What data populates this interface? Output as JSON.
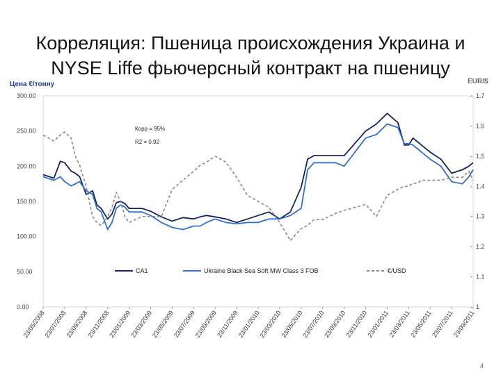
{
  "header": {
    "title_line1": "Корреляция: Пшеница происхождения Украина и",
    "title_line2": "NYSE Liffe фьючерсный контракт на пшеницу"
  },
  "page": {
    "number": "4"
  },
  "chart_data": {
    "type": "line",
    "ylabel": "Цена €/тонну",
    "y2label": "EUR/$",
    "ylim": [
      0,
      300
    ],
    "y2lim": [
      1,
      1.7
    ],
    "yticks": [
      "300.00",
      "250.00",
      "200.00",
      "150.00",
      "100.00",
      "50.00",
      "0.00"
    ],
    "y2ticks": [
      "1.7",
      "1.6",
      "1.5",
      "1.4",
      "1.3",
      "1.2",
      "1.1",
      "1"
    ],
    "xticks": [
      "23/05/2008",
      "23/07/2008",
      "23/09/2008",
      "23/11/2008",
      "23/01/2009",
      "23/03/2009",
      "23/05/2009",
      "23/07/2009",
      "23/09/2009",
      "23/11/2009",
      "23/01/2010",
      "23/03/2010",
      "23/05/2010",
      "23/07/2010",
      "23/09/2010",
      "23/11/2010",
      "23/01/2011",
      "23/03/2011",
      "23/05/2011",
      "23/07/2011",
      "23/09/2011"
    ],
    "annotations": [
      "Корр = 95%",
      "R2 = 0.92"
    ],
    "x": [
      0,
      0.5,
      0.8,
      1,
      1.3,
      1.5,
      1.7,
      2,
      2.3,
      2.5,
      2.7,
      3,
      3.2,
      3.4,
      3.6,
      3.8,
      4,
      4.3,
      4.6,
      5,
      5.5,
      6,
      6.5,
      7,
      7.3,
      7.6,
      8,
      8.5,
      9,
      9.5,
      10,
      10.5,
      11,
      11.5,
      12,
      12.3,
      12.6,
      13,
      13.3,
      13.6,
      14,
      15,
      15.5,
      16,
      16.5,
      16.8,
      17,
      17.2,
      17.4,
      17.6,
      18,
      18.5,
      19,
      19.5,
      19.8,
      20
    ],
    "series": [
      {
        "name": "CA1",
        "color": "#13235f",
        "axis": "left",
        "values": [
          188,
          183,
          207,
          205,
          193,
          190,
          185,
          160,
          165,
          145,
          140,
          125,
          132,
          148,
          150,
          147,
          140,
          140,
          140,
          136,
          128,
          122,
          127,
          125,
          128,
          130,
          128,
          125,
          120,
          125,
          130,
          135,
          125,
          135,
          170,
          210,
          215,
          215,
          215,
          215,
          215,
          250,
          260,
          275,
          262,
          230,
          230,
          240,
          235,
          230,
          220,
          210,
          190,
          195,
          200,
          205
        ]
      },
      {
        "name": "Ukraine Black Sea Soft MW Class 3 FOB",
        "color": "#2e6fd6",
        "axis": "left",
        "values": [
          185,
          180,
          185,
          178,
          172,
          175,
          178,
          165,
          160,
          140,
          135,
          110,
          120,
          140,
          145,
          142,
          135,
          135,
          135,
          130,
          120,
          113,
          110,
          115,
          115,
          120,
          125,
          120,
          118,
          120,
          120,
          125,
          125,
          130,
          140,
          195,
          205,
          205,
          205,
          205,
          200,
          240,
          245,
          260,
          255,
          232,
          232,
          230,
          225,
          220,
          210,
          200,
          178,
          175,
          185,
          195
        ]
      },
      {
        "name": "€/USD",
        "color": "#888888",
        "axis": "right",
        "dashed": true,
        "values": [
          1.57,
          1.55,
          1.57,
          1.58,
          1.56,
          1.5,
          1.47,
          1.4,
          1.3,
          1.28,
          1.27,
          1.3,
          1.33,
          1.38,
          1.35,
          1.3,
          1.28,
          1.29,
          1.3,
          1.3,
          1.3,
          1.39,
          1.42,
          1.45,
          1.47,
          1.48,
          1.5,
          1.48,
          1.43,
          1.37,
          1.35,
          1.33,
          1.28,
          1.22,
          1.26,
          1.27,
          1.29,
          1.29,
          1.3,
          1.31,
          1.32,
          1.34,
          1.3,
          1.37,
          1.39,
          1.4,
          1.4,
          1.41,
          1.41,
          1.42,
          1.42,
          1.42,
          1.43,
          1.43,
          1.45,
          1.42
        ]
      }
    ]
  }
}
